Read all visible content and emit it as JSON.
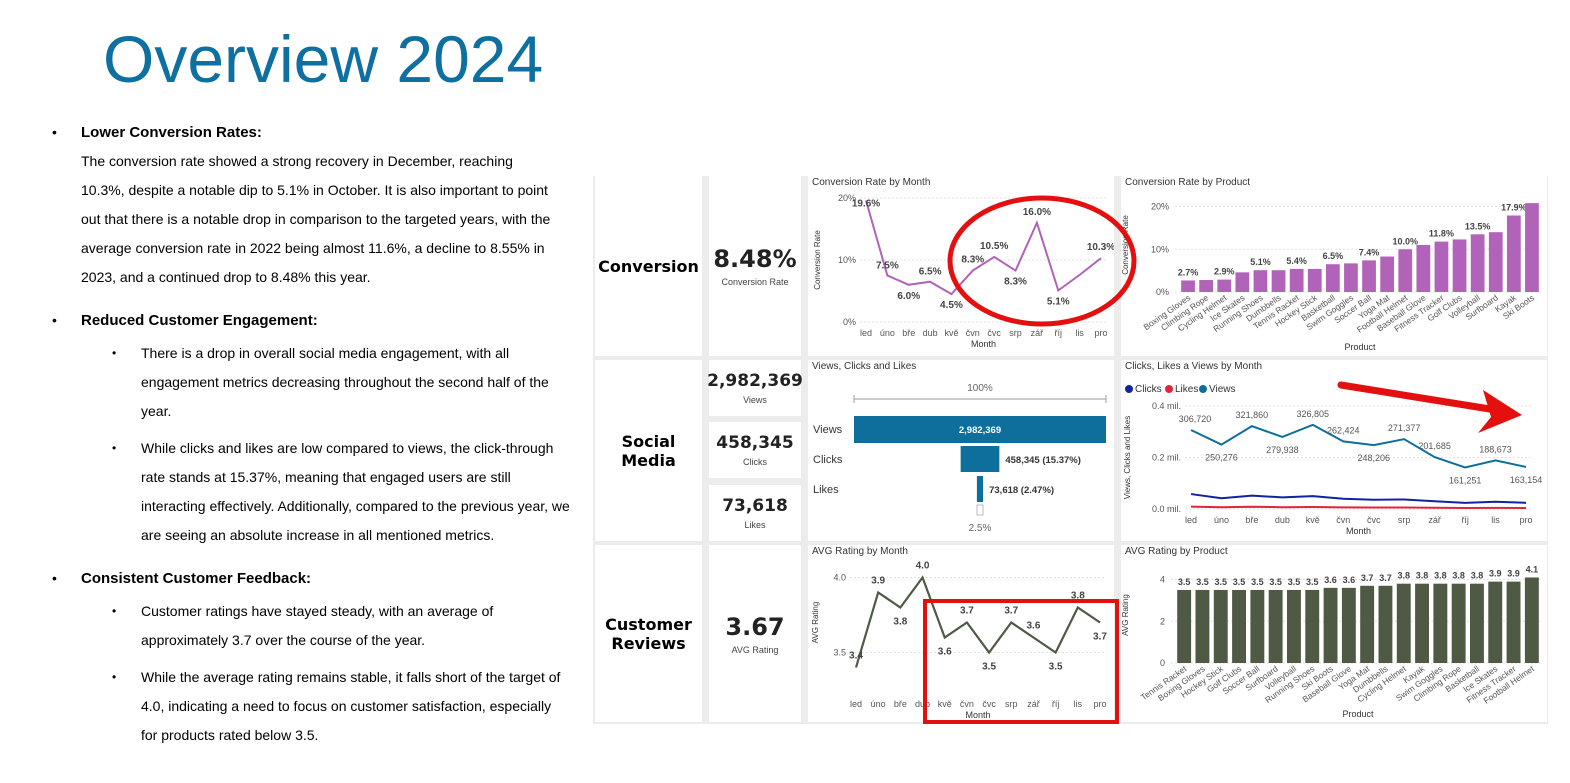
{
  "title": "Overview 2024",
  "notes": {
    "s1_head": "Lower Conversion Rates:",
    "s1_text": "The conversion rate showed a strong recovery in December, reaching 10.3%, despite a notable dip to 5.1% in October. It is also important to point out that there is a notable drop in comparison to the targeted years, with the average conversion rate in 2022 being almost 11.6%, a decline to 8.55% in 2023, and a continued drop to 8.48% this year.",
    "s2_head": "Reduced Customer Engagement:",
    "s2_b1": "There is a drop in overall social media engagement, with all engagement metrics decreasing throughout the second half of the year.",
    "s2_b2": "While clicks and likes are low compared to views, the click-through rate stands at 15.37%, meaning that engaged users are still interacting effectively. Additionally, compared to the previous year, we are seeing an absolute increase in all mentioned metrics.",
    "s3_head": "Consistent Customer Feedback:",
    "s3_b1": "Customer ratings have stayed steady, with an average of approximately 3.7 over the course of the year.",
    "s3_b2": "While the average rating remains stable, it falls short of the target of 4.0, indicating a need to focus on customer satisfaction, especially for products rated below 3.5.",
    "bullet": "•"
  },
  "rows": {
    "conversion": "Conversion",
    "social": "Social Media",
    "reviews_1": "Customer",
    "reviews_2": "Reviews"
  },
  "kpis": {
    "conv_value": "8.48%",
    "conv_label": "Conversion Rate",
    "views_value": "2,982,369",
    "views_label": "Views",
    "clicks_value": "458,345",
    "clicks_label": "Clicks",
    "likes_value": "73,618",
    "likes_label": "Likes",
    "rating_value": "3.67",
    "rating_label": "AVG Rating"
  },
  "colors": {
    "title": "#0e6fa1",
    "conversion": "#b063b8",
    "views": "#0f6f9c",
    "clicks": "#12239e",
    "likes": "#e0263b",
    "rating": "#4f5a44",
    "highlight": "#e41010"
  },
  "months": [
    "led",
    "úno",
    "bře",
    "dub",
    "kvě",
    "čvn",
    "čvc",
    "srp",
    "zář",
    "říj",
    "lis",
    "pro"
  ],
  "chart_data": [
    {
      "type": "line",
      "title": "Conversion Rate by Month",
      "xlabel": "Month",
      "ylabel": "Conversion Rate",
      "yticks": [
        "0%",
        "10%",
        "20%"
      ],
      "ylim": [
        0,
        20
      ],
      "x": [
        "led",
        "úno",
        "bře",
        "dub",
        "kvě",
        "čvn",
        "čvc",
        "srp",
        "zář",
        "říj",
        "lis",
        "pro"
      ],
      "values": [
        19.6,
        7.5,
        6.0,
        6.5,
        4.5,
        8.3,
        10.5,
        8.3,
        16.0,
        5.1,
        7.6,
        10.3
      ],
      "labels": [
        "19.6%",
        "7.5%",
        "6.0%",
        "6.5%",
        "4.5%",
        "8.3%",
        "10.5%",
        "8.3%",
        "16.0%",
        "5.1%",
        "",
        "10.3%"
      ]
    },
    {
      "type": "bar",
      "title": "Conversion Rate by Product",
      "xlabel": "Product",
      "ylabel": "Conversion Rate",
      "yticks": [
        "0%",
        "10%",
        "20%"
      ],
      "ylim": [
        0,
        22
      ],
      "categories": [
        "Boxing Gloves",
        "Climbing Rope",
        "Cycling Helmet",
        "Ice Skates",
        "Running Shoes",
        "Dumbbells",
        "Tennis Racket",
        "Hockey Stick",
        "Basketball",
        "Swim Goggles",
        "Soccer Ball",
        "Yoga Mat",
        "Football Helmet",
        "Baseball Glove",
        "Fitness Tracker",
        "Golf Clubs",
        "Volleyball",
        "Surfboard",
        "Kayak",
        "Ski Boots"
      ],
      "values": [
        2.7,
        2.8,
        2.9,
        4.6,
        5.1,
        5.1,
        5.4,
        5.4,
        6.5,
        6.7,
        7.4,
        8.3,
        10.0,
        11.0,
        11.8,
        12.3,
        13.5,
        14.0,
        17.9,
        20.8
      ],
      "labels": [
        "2.7%",
        "",
        "2.9%",
        "",
        "5.1%",
        "",
        "5.4%",
        "",
        "6.5%",
        "",
        "7.4%",
        "",
        "10.0%",
        "",
        "11.8%",
        "",
        "13.5%",
        "",
        "17.9%",
        ""
      ]
    },
    {
      "type": "bar",
      "title": "Views, Clicks and Likes",
      "top_label": "100%",
      "bottom_label": "2.5%",
      "categories": [
        "Views",
        "Clicks",
        "Likes"
      ],
      "values": [
        2982369,
        458345,
        73618
      ],
      "labels": [
        "2,982,369",
        "458,345 (15.37%)",
        "73,618 (2.47%)"
      ]
    },
    {
      "type": "line",
      "title": "Clicks, Likes a Views by Month",
      "xlabel": "Month",
      "ylabel": "Views, Clicks and Likes",
      "yticks": [
        "0.0 mil.",
        "0.2 mil.",
        "0.4 mil."
      ],
      "ylim": [
        0,
        400000
      ],
      "x": [
        "led",
        "úno",
        "bře",
        "dub",
        "kvě",
        "čvn",
        "čvc",
        "srp",
        "zář",
        "říj",
        "lis",
        "pro"
      ],
      "legend": [
        "Clicks",
        "Likes",
        "Views"
      ],
      "series": [
        {
          "name": "Views",
          "values": [
            306720,
            250276,
            321860,
            279938,
            326805,
            262424,
            248206,
            271377,
            201685,
            161251,
            188673,
            163154
          ]
        },
        {
          "name": "Clicks",
          "values": [
            58000,
            42000,
            52000,
            45000,
            50000,
            40000,
            36000,
            37000,
            30000,
            24000,
            28000,
            24000
          ]
        },
        {
          "name": "Likes",
          "values": [
            9000,
            7000,
            8500,
            7000,
            8000,
            6500,
            6000,
            6000,
            5000,
            4000,
            4500,
            4000
          ]
        }
      ],
      "labels": [
        "306,720",
        "250,276",
        "321,860",
        "279,938",
        "326,805",
        "262,424",
        "248,206",
        "271,377",
        "201,685",
        "161,251",
        "188,673",
        "163,154"
      ]
    },
    {
      "type": "line",
      "title": "AVG Rating by Month",
      "xlabel": "Month",
      "ylabel": "AVG Rating",
      "yticks": [
        "3.5",
        "4.0"
      ],
      "ylim": [
        3.35,
        4.05
      ],
      "x": [
        "led",
        "úno",
        "bře",
        "dub",
        "kvě",
        "čvn",
        "čvc",
        "srp",
        "zář",
        "říj",
        "lis",
        "pro"
      ],
      "values": [
        3.4,
        3.9,
        3.8,
        4.0,
        3.6,
        3.7,
        3.5,
        3.7,
        3.6,
        3.5,
        3.8,
        3.7
      ],
      "labels": [
        "3.4",
        "3.9",
        "3.8",
        "4.0",
        "3.6",
        "3.7",
        "3.5",
        "3.7",
        "3.6",
        "3.5",
        "3.8",
        "3.7"
      ]
    },
    {
      "type": "bar",
      "title": "AVG Rating by Product",
      "xlabel": "Product",
      "ylabel": "AVG Rating",
      "yticks": [
        "0",
        "2",
        "4"
      ],
      "ylim": [
        0,
        4.6
      ],
      "categories": [
        "Tennis Racket",
        "Boxing Gloves",
        "Hockey Stick",
        "Golf Clubs",
        "Soccer Ball",
        "Surfboard",
        "Volleyball",
        "Running Shoes",
        "Ski Boots",
        "Baseball Glove",
        "Yoga Mat",
        "Dumbbells",
        "Cycling Helmet",
        "Kayak",
        "Swim Goggles",
        "Climbing Rope",
        "Basketball",
        "Ice Skates",
        "Fitness Tracker",
        "Football Helmet"
      ],
      "values": [
        3.5,
        3.5,
        3.5,
        3.5,
        3.5,
        3.5,
        3.5,
        3.5,
        3.6,
        3.6,
        3.7,
        3.7,
        3.8,
        3.8,
        3.8,
        3.8,
        3.8,
        3.9,
        3.9,
        4.1
      ],
      "labels": [
        "3.5",
        "3.5",
        "3.5",
        "3.5",
        "3.5",
        "3.5",
        "3.5",
        "3.5",
        "3.6",
        "3.6",
        "3.7",
        "3.7",
        "3.8",
        "3.8",
        "3.8",
        "3.8",
        "3.8",
        "3.9",
        "3.9",
        "4.1"
      ]
    }
  ]
}
